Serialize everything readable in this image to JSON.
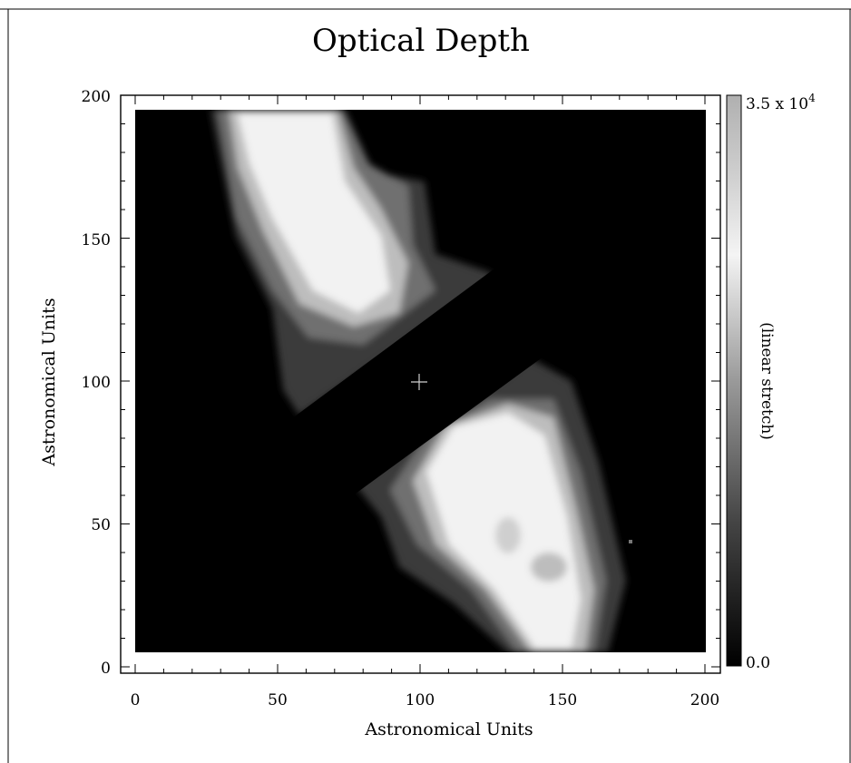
{
  "chart_data": {
    "type": "heatmap",
    "title": "Optical Depth",
    "xlabel": "Astronomical Units",
    "ylabel": "Astronomical Units",
    "xlim": [
      0,
      200
    ],
    "ylim": [
      0,
      200
    ],
    "xticks": [
      "0",
      "50",
      "100",
      "150",
      "200"
    ],
    "yticks": [
      "0",
      "50",
      "100",
      "150",
      "200"
    ],
    "colormap": "grayscale",
    "colorbar": {
      "label": "(linear stretch)",
      "max_label": "3.5 x 10",
      "max_exponent": "4",
      "min_label": "0.0",
      "range": [
        0.0,
        35000
      ]
    },
    "center_marker": {
      "symbol": "+",
      "x": 100,
      "y": 100
    },
    "image_extent": {
      "x": [
        0,
        200
      ],
      "y": [
        5,
        195
      ]
    },
    "structure": "two bright lobes along the diagonal from upper-left to lower-right, separated by a dark band through the center"
  }
}
